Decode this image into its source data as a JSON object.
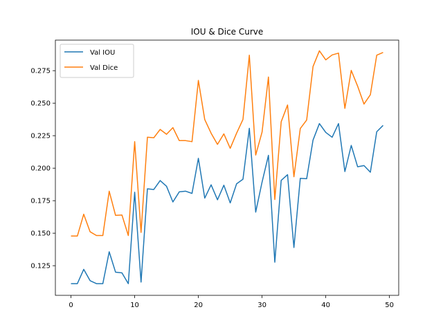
{
  "chart_data": {
    "type": "line",
    "title": "IOU & Dice Curve",
    "xlabel": "",
    "ylabel": "",
    "xlim": [
      -2.45,
      51.45
    ],
    "ylim": [
      0.1022,
      0.2985
    ],
    "xticks": [
      0,
      10,
      20,
      30,
      40,
      50
    ],
    "yticks": [
      0.125,
      0.15,
      0.175,
      0.2,
      0.225,
      0.25,
      0.275
    ],
    "ytick_labels": [
      "0.125",
      "0.150",
      "0.175",
      "0.200",
      "0.225",
      "0.250",
      "0.275"
    ],
    "grid": false,
    "legend_position": "top-left",
    "x": [
      0,
      1,
      2,
      3,
      4,
      5,
      6,
      7,
      8,
      9,
      10,
      11,
      12,
      13,
      14,
      15,
      16,
      17,
      18,
      19,
      20,
      21,
      22,
      23,
      24,
      25,
      26,
      27,
      28,
      29,
      30,
      31,
      32,
      33,
      34,
      35,
      36,
      37,
      38,
      39,
      40,
      41,
      42,
      43,
      44,
      45,
      46,
      47,
      48,
      49
    ],
    "series": [
      {
        "name": "Val IOU",
        "color": "#1f77b4",
        "values": [
          0.1112,
          0.1112,
          0.1222,
          0.1135,
          0.1112,
          0.1112,
          0.1357,
          0.12,
          0.1195,
          0.1112,
          0.1815,
          0.1124,
          0.1841,
          0.1836,
          0.1905,
          0.1861,
          0.174,
          0.1818,
          0.1823,
          0.1806,
          0.2076,
          0.177,
          0.1872,
          0.1757,
          0.1869,
          0.1733,
          0.188,
          0.1915,
          0.2307,
          0.1662,
          0.1893,
          0.2099,
          0.1277,
          0.1906,
          0.195,
          0.139,
          0.1922,
          0.1919,
          0.2216,
          0.2343,
          0.2275,
          0.2238,
          0.2343,
          0.1974,
          0.2175,
          0.2011,
          0.202,
          0.1969,
          0.228,
          0.2329
        ]
      },
      {
        "name": "Val Dice",
        "color": "#ff7f0e",
        "values": [
          0.1478,
          0.1478,
          0.1646,
          0.1511,
          0.1482,
          0.1482,
          0.1823,
          0.1637,
          0.164,
          0.1482,
          0.2204,
          0.1506,
          0.2238,
          0.2234,
          0.2298,
          0.2261,
          0.2312,
          0.2212,
          0.2212,
          0.2204,
          0.2675,
          0.2374,
          0.2269,
          0.2183,
          0.2264,
          0.2153,
          0.2269,
          0.2375,
          0.2869,
          0.2101,
          0.2278,
          0.2701,
          0.1759,
          0.2357,
          0.2486,
          0.1934,
          0.2305,
          0.237,
          0.2782,
          0.2903,
          0.2833,
          0.2871,
          0.2885,
          0.246,
          0.2752,
          0.2631,
          0.2493,
          0.2565,
          0.2869,
          0.289
        ]
      }
    ]
  }
}
